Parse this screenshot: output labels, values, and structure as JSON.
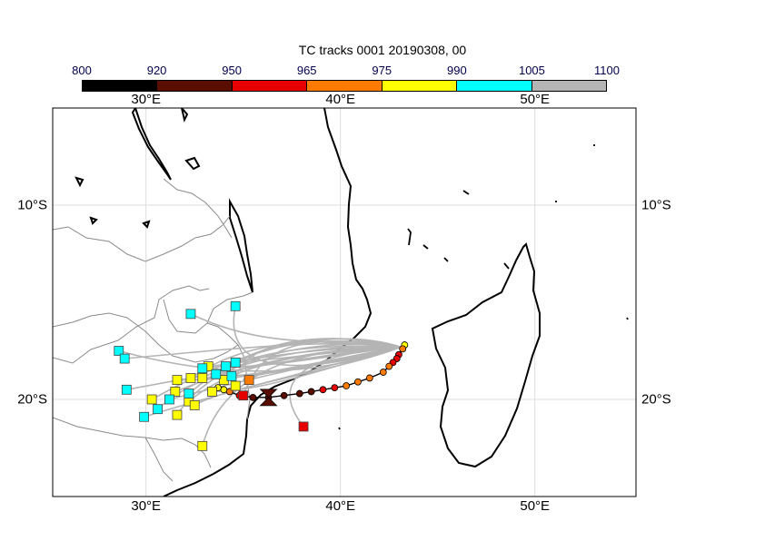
{
  "title": "TC tracks  0001 20190308, 00",
  "colorbar": {
    "labels": [
      "800",
      "920",
      "950",
      "965",
      "975",
      "990",
      "1005",
      "1100"
    ],
    "colors": [
      "#000000",
      "#5a0e00",
      "#e60000",
      "#ff7b00",
      "#ffff00",
      "#00ffff",
      "#b4b4b4"
    ]
  },
  "lon_labels": [
    "30°E",
    "40°E",
    "50°E"
  ],
  "lat_labels": [
    "10°S",
    "20°S"
  ],
  "chart_data": {
    "type": "map",
    "projection": "lat-lon",
    "lon_range": [
      25.2,
      55.2
    ],
    "lat_range": [
      -25,
      -5
    ],
    "grid": true,
    "observed_track": [
      {
        "lon": 43.3,
        "lat": -17.2,
        "p": 990
      },
      {
        "lon": 43.2,
        "lat": -17.4,
        "p": 975
      },
      {
        "lon": 43.0,
        "lat": -17.7,
        "p": 965
      },
      {
        "lon": 42.9,
        "lat": -17.9,
        "p": 965
      },
      {
        "lon": 42.7,
        "lat": -18.1,
        "p": 965
      },
      {
        "lon": 42.5,
        "lat": -18.3,
        "p": 975
      },
      {
        "lon": 42.2,
        "lat": -18.6,
        "p": 975
      },
      {
        "lon": 41.5,
        "lat": -18.9,
        "p": 975
      },
      {
        "lon": 40.9,
        "lat": -19.1,
        "p": 975
      },
      {
        "lon": 40.3,
        "lat": -19.3,
        "p": 975
      },
      {
        "lon": 39.7,
        "lat": -19.4,
        "p": 965
      },
      {
        "lon": 39.1,
        "lat": -19.5,
        "p": 965
      },
      {
        "lon": 38.5,
        "lat": -19.6,
        "p": 950
      },
      {
        "lon": 37.9,
        "lat": -19.7,
        "p": 950
      },
      {
        "lon": 37.1,
        "lat": -19.8,
        "p": 950
      },
      {
        "lon": 36.3,
        "lat": -19.9,
        "p": 950
      },
      {
        "lon": 35.5,
        "lat": -19.9,
        "p": 950
      },
      {
        "lon": 34.8,
        "lat": -19.8,
        "p": 965
      },
      {
        "lon": 34.3,
        "lat": -19.6,
        "p": 975
      },
      {
        "lon": 34.0,
        "lat": -19.5,
        "p": 990
      },
      {
        "lon": 33.7,
        "lat": -19.4,
        "p": 990
      }
    ],
    "landfall_marker": {
      "lon": 36.3,
      "lat": -19.9,
      "p": 950
    },
    "ensemble_endpoints": [
      {
        "lon": 30.3,
        "lat": -20.0,
        "p": 990
      },
      {
        "lon": 31.5,
        "lat": -19.6,
        "p": 990
      },
      {
        "lon": 31.6,
        "lat": -19.0,
        "p": 990
      },
      {
        "lon": 32.3,
        "lat": -18.9,
        "p": 990
      },
      {
        "lon": 32.2,
        "lat": -20.1,
        "p": 990
      },
      {
        "lon": 32.5,
        "lat": -20.3,
        "p": 990
      },
      {
        "lon": 31.6,
        "lat": -20.8,
        "p": 990
      },
      {
        "lon": 33.2,
        "lat": -18.3,
        "p": 990
      },
      {
        "lon": 33.4,
        "lat": -19.6,
        "p": 990
      },
      {
        "lon": 32.9,
        "lat": -18.9,
        "p": 990
      },
      {
        "lon": 34.0,
        "lat": -19.0,
        "p": 990
      },
      {
        "lon": 34.6,
        "lat": -19.3,
        "p": 990
      },
      {
        "lon": 32.9,
        "lat": -22.4,
        "p": 990
      },
      {
        "lon": 35.3,
        "lat": -19.0,
        "p": 975
      },
      {
        "lon": 35.0,
        "lat": -19.8,
        "p": 965
      },
      {
        "lon": 38.1,
        "lat": -21.4,
        "p": 965
      },
      {
        "lon": 28.6,
        "lat": -17.5,
        "p": 1005
      },
      {
        "lon": 28.9,
        "lat": -17.9,
        "p": 1005
      },
      {
        "lon": 29.0,
        "lat": -19.5,
        "p": 1005
      },
      {
        "lon": 29.9,
        "lat": -20.9,
        "p": 1005
      },
      {
        "lon": 30.6,
        "lat": -20.5,
        "p": 1005
      },
      {
        "lon": 31.2,
        "lat": -20.0,
        "p": 1005
      },
      {
        "lon": 32.2,
        "lat": -19.7,
        "p": 1005
      },
      {
        "lon": 32.9,
        "lat": -18.4,
        "p": 1005
      },
      {
        "lon": 33.6,
        "lat": -18.7,
        "p": 1005
      },
      {
        "lon": 34.4,
        "lat": -18.8,
        "p": 1005
      },
      {
        "lon": 34.6,
        "lat": -18.1,
        "p": 1005
      },
      {
        "lon": 34.6,
        "lat": -15.2,
        "p": 1005
      },
      {
        "lon": 32.3,
        "lat": -15.6,
        "p": 1005
      },
      {
        "lon": 34.1,
        "lat": -18.3,
        "p": 1005
      }
    ]
  }
}
